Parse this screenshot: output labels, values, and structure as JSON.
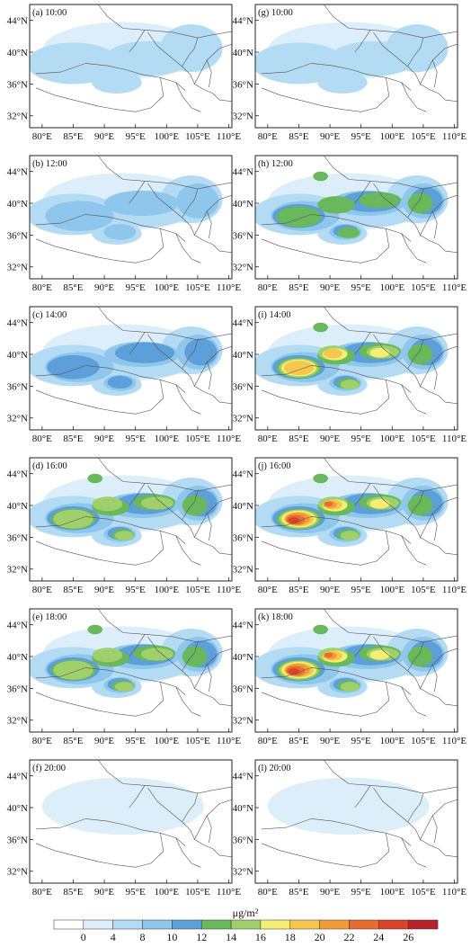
{
  "figure": {
    "colorbar": {
      "unit": "μg/m²",
      "tick_labels": [
        "0",
        "4",
        "8",
        "10",
        "12",
        "14",
        "16",
        "18",
        "20",
        "22",
        "24",
        "26"
      ],
      "colors": [
        "#ffffff",
        "#dbeefa",
        "#b3dbf4",
        "#8ec6ec",
        "#5d9fd8",
        "#69b85c",
        "#9fd06c",
        "#f3ee73",
        "#f6c64e",
        "#f29c39",
        "#e86b32",
        "#d8432a",
        "#b8232a"
      ]
    },
    "axes": {
      "x_ticks": [
        "80°E",
        "85°E",
        "90°E",
        "95°E",
        "100°E",
        "105°E",
        "110°E"
      ],
      "y_ticks": [
        "44°N",
        "40°N",
        "36°N",
        "32°N"
      ]
    },
    "panels": [
      {
        "label": "(a) 10:00",
        "col": 0,
        "row": 0,
        "max_level": 2
      },
      {
        "label": "(b) 12:00",
        "col": 0,
        "row": 1,
        "max_level": 3
      },
      {
        "label": "(c) 14:00",
        "col": 0,
        "row": 2,
        "max_level": 4
      },
      {
        "label": "(d) 16:00",
        "col": 0,
        "row": 3,
        "max_level": 6
      },
      {
        "label": "(e) 18:00",
        "col": 0,
        "row": 4,
        "max_level": 6
      },
      {
        "label": "(f) 20:00",
        "col": 0,
        "row": 5,
        "max_level": 1
      },
      {
        "label": "(g) 10:00",
        "col": 1,
        "row": 0,
        "max_level": 2
      },
      {
        "label": "(h) 12:00",
        "col": 1,
        "row": 1,
        "max_level": 5
      },
      {
        "label": "(i) 14:00",
        "col": 1,
        "row": 2,
        "max_level": 8
      },
      {
        "label": "(j) 16:00",
        "col": 1,
        "row": 3,
        "max_level": 11
      },
      {
        "label": "(k) 18:00",
        "col": 1,
        "row": 4,
        "max_level": 11
      },
      {
        "label": "(l) 20:00",
        "col": 1,
        "row": 5,
        "max_level": 1
      }
    ]
  }
}
